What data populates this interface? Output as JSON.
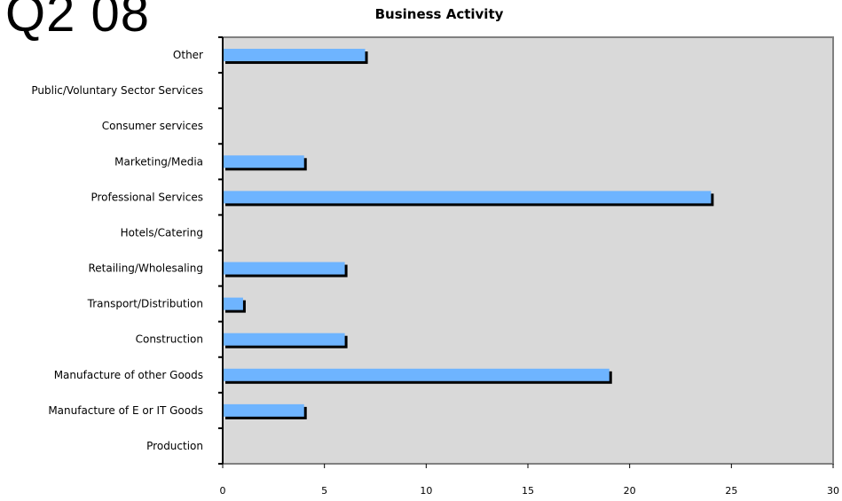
{
  "page": {
    "heading": "Q2 08"
  },
  "chart_data": {
    "type": "bar",
    "orientation": "horizontal",
    "title": "Business Activity",
    "categories": [
      "Other",
      "Public/Voluntary Sector Services",
      "Consumer services",
      "Marketing/Media",
      "Professional Services",
      "Hotels/Catering",
      "Retailing/Wholesaling",
      "Transport/Distribution",
      "Construction",
      "Manufacture of other Goods",
      "Manufacture of E or IT Goods",
      "Production"
    ],
    "values": [
      7,
      0,
      0,
      4,
      24,
      0,
      6,
      1,
      6,
      19,
      4,
      0
    ],
    "xlim": [
      0,
      30
    ],
    "xticks": [
      0,
      5,
      10,
      15,
      20,
      25,
      30
    ],
    "grid": false,
    "legend": "none",
    "colors": {
      "bar": "#6EB4FF",
      "shadow": "#000000",
      "plot_bg": "#D9D9D9",
      "border": "#808080"
    }
  }
}
